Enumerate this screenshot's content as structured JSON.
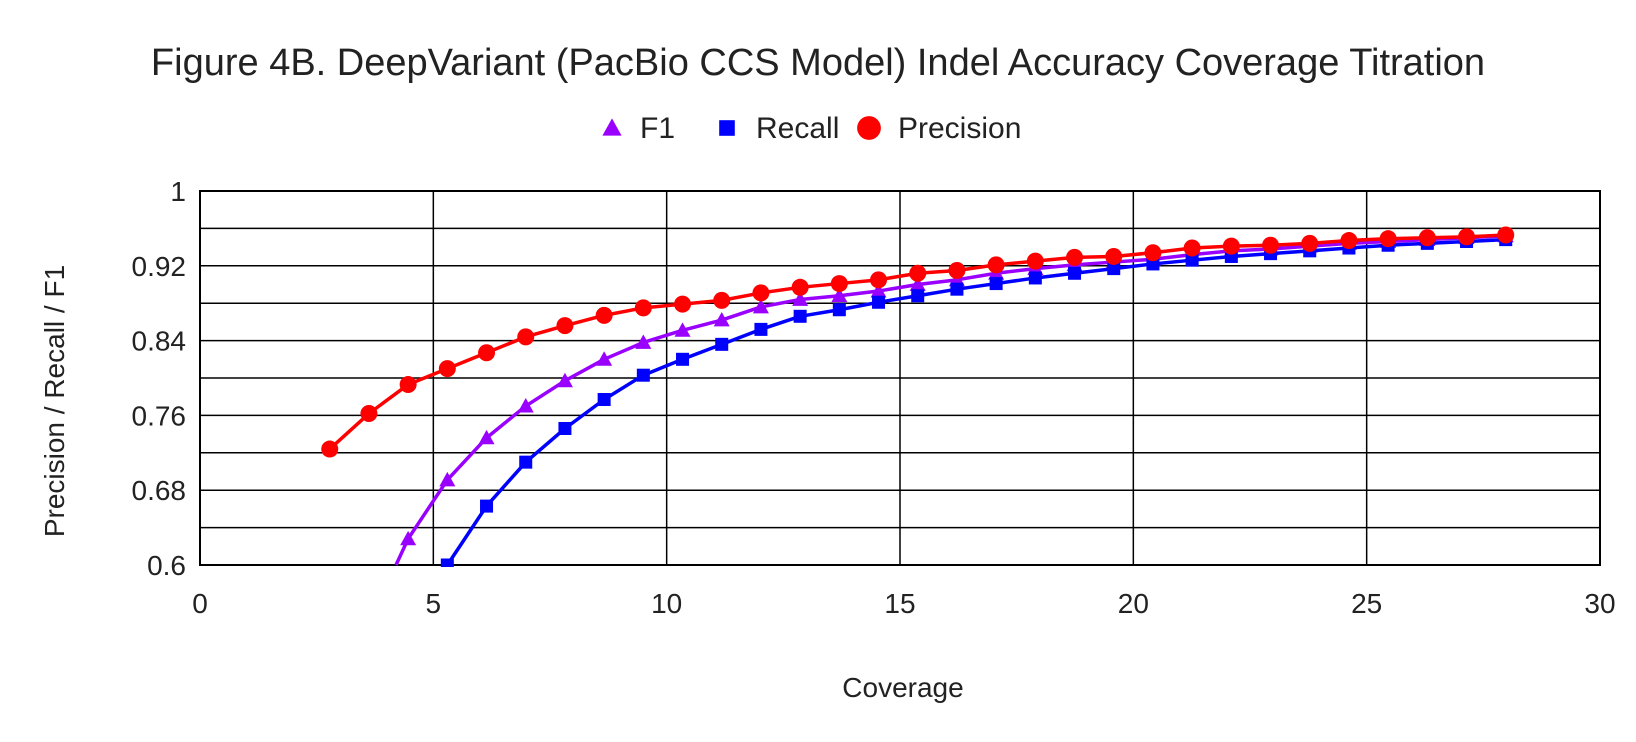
{
  "chart_data": {
    "type": "line",
    "title": "Figure 4B. DeepVariant (PacBio CCS Model) Indel Accuracy Coverage Titration",
    "xlabel": "Coverage",
    "ylabel": "Precision / Recall / F1",
    "xlim": [
      0,
      30
    ],
    "ylim": [
      0.6,
      1
    ],
    "xticks": [
      0,
      5,
      10,
      15,
      20,
      25,
      30
    ],
    "yticks": [
      0.6,
      0.68,
      0.76,
      0.84,
      0.92,
      1
    ],
    "xtick_labels": [
      "0",
      "5",
      "10",
      "15",
      "20",
      "25",
      "30"
    ],
    "ytick_labels": [
      "0.6",
      "0.68",
      "0.76",
      "0.84",
      "0.92",
      "1"
    ],
    "grid": true,
    "legend_position": "top-center",
    "series": [
      {
        "name": "F1",
        "color": "#9900ff",
        "marker": "triangle",
        "x": [
          4.2,
          4.46,
          5.3,
          6.14,
          6.98,
          7.82,
          8.66,
          9.5,
          10.34,
          11.18,
          12.02,
          12.86,
          13.7,
          14.54,
          15.38,
          16.22,
          17.06,
          17.9,
          18.74,
          19.58,
          20.42,
          21.26,
          22.1,
          22.94,
          23.78,
          24.62,
          25.46,
          26.3,
          27.14,
          27.98
        ],
        "values": [
          0.6,
          0.628,
          0.691,
          0.736,
          0.77,
          0.797,
          0.82,
          0.838,
          0.851,
          0.862,
          0.876,
          0.884,
          0.888,
          0.893,
          0.9,
          0.905,
          0.912,
          0.917,
          0.921,
          0.924,
          0.927,
          0.932,
          0.936,
          0.938,
          0.941,
          0.944,
          0.946,
          0.948,
          0.95,
          0.952
        ]
      },
      {
        "name": "Recall",
        "color": "#0000ff",
        "marker": "square",
        "x": [
          5.3,
          6.14,
          6.98,
          7.82,
          8.66,
          9.5,
          10.34,
          11.18,
          12.02,
          12.86,
          13.7,
          14.54,
          15.38,
          16.22,
          17.06,
          17.9,
          18.74,
          19.58,
          20.42,
          21.26,
          22.1,
          22.94,
          23.78,
          24.62,
          25.46,
          26.3,
          27.14,
          27.98
        ],
        "values": [
          0.6,
          0.663,
          0.71,
          0.746,
          0.777,
          0.803,
          0.82,
          0.836,
          0.852,
          0.866,
          0.873,
          0.881,
          0.888,
          0.895,
          0.901,
          0.907,
          0.912,
          0.917,
          0.922,
          0.926,
          0.93,
          0.933,
          0.936,
          0.939,
          0.942,
          0.944,
          0.946,
          0.948
        ]
      },
      {
        "name": "Precision",
        "color": "#ff0000",
        "marker": "circle",
        "x": [
          2.78,
          3.62,
          4.46,
          5.3,
          6.14,
          6.98,
          7.82,
          8.66,
          9.5,
          10.34,
          11.18,
          12.02,
          12.86,
          13.7,
          14.54,
          15.38,
          16.22,
          17.06,
          17.9,
          18.74,
          19.58,
          20.42,
          21.26,
          22.1,
          22.94,
          23.78,
          24.62,
          25.46,
          26.3,
          27.14,
          27.98
        ],
        "values": [
          0.724,
          0.762,
          0.793,
          0.81,
          0.827,
          0.844,
          0.856,
          0.867,
          0.875,
          0.879,
          0.883,
          0.891,
          0.897,
          0.901,
          0.905,
          0.912,
          0.915,
          0.921,
          0.925,
          0.929,
          0.93,
          0.934,
          0.939,
          0.941,
          0.942,
          0.944,
          0.947,
          0.949,
          0.95,
          0.951,
          0.953
        ]
      }
    ]
  }
}
